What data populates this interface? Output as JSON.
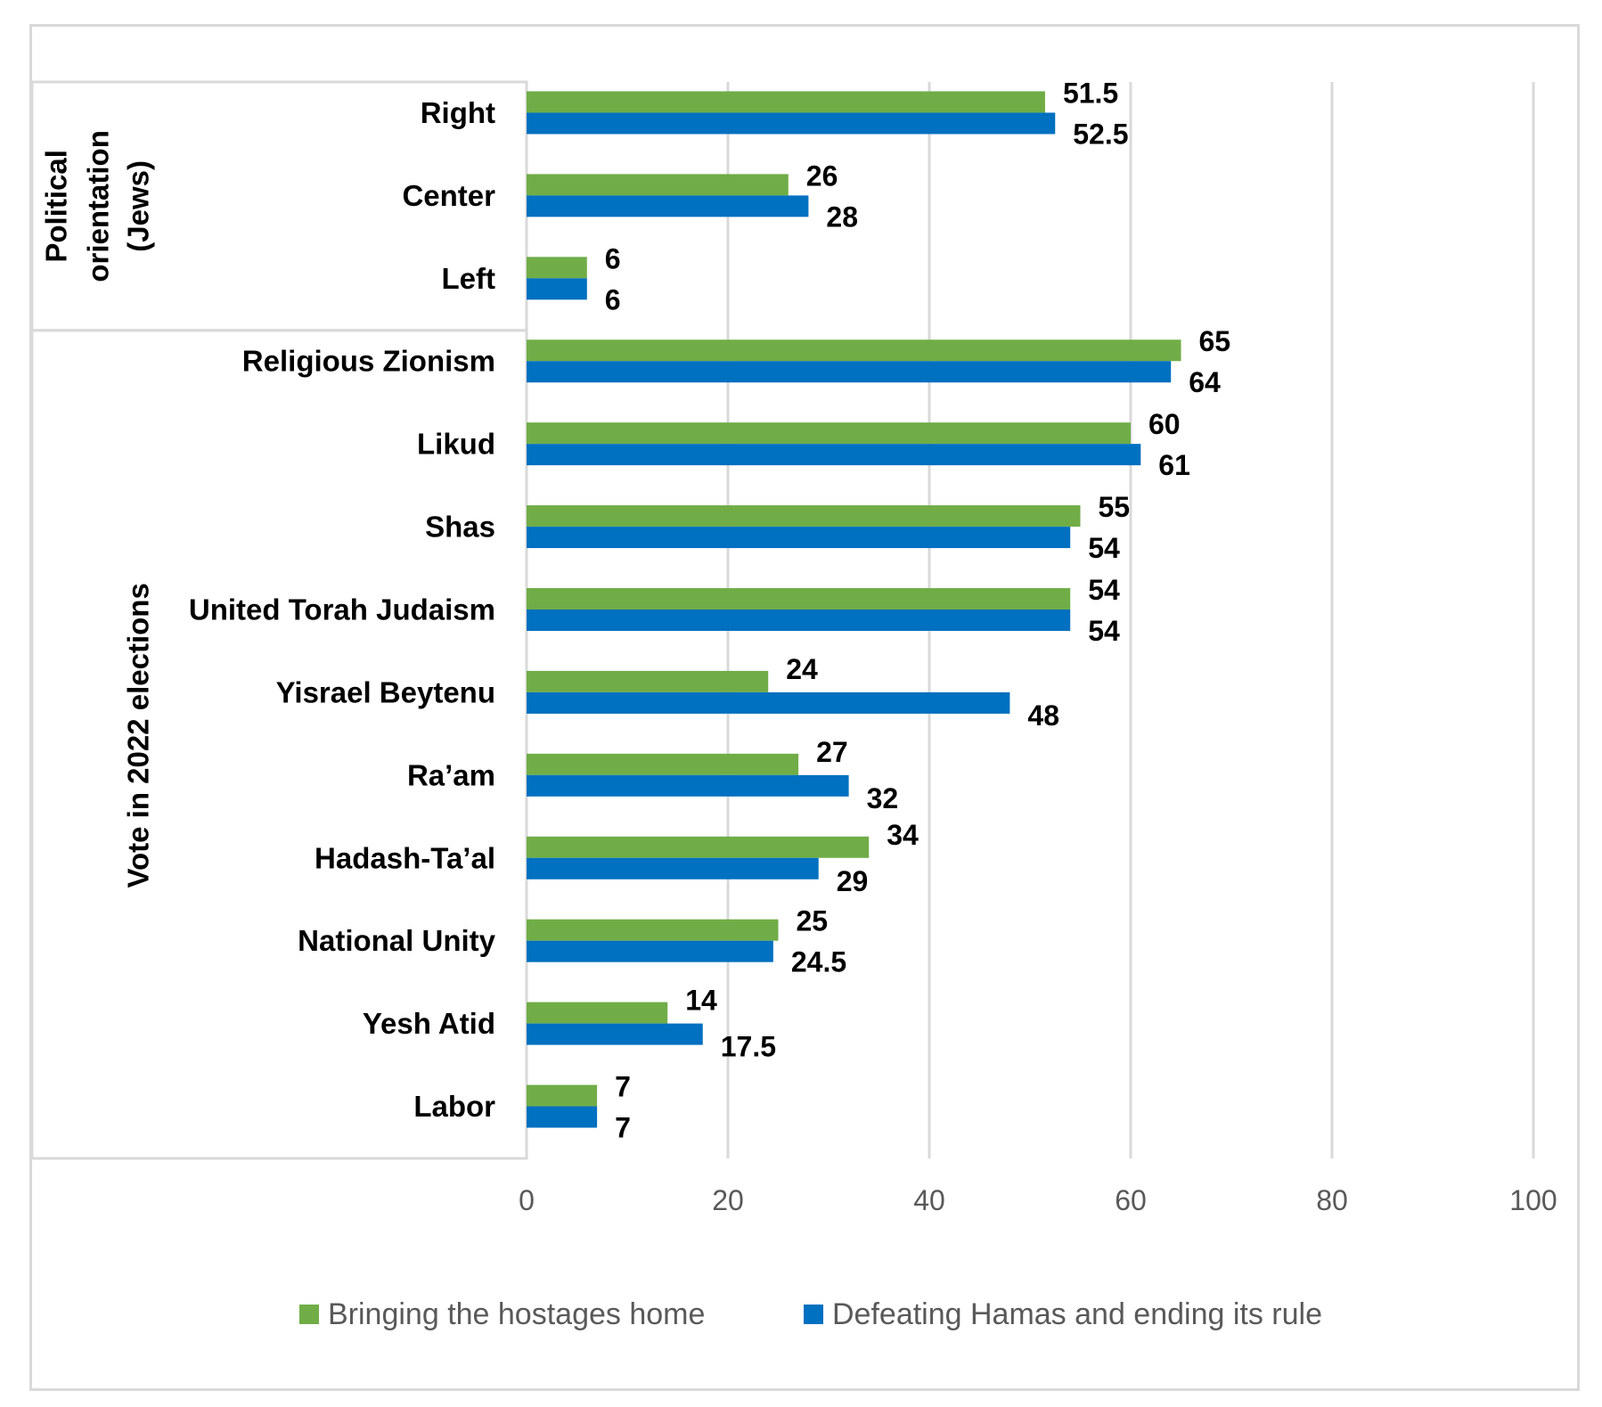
{
  "colors": {
    "series_hostages": "#70ad47",
    "series_hamas": "#0070c0",
    "grid": "#d9d9d9",
    "frame": "#d9d9d9",
    "axis_text": "#595959",
    "label_text": "#000000"
  },
  "chart_data": {
    "type": "bar",
    "orientation": "horizontal",
    "categories": [
      "Right",
      "Center",
      "Left",
      "Religious Zionism",
      "Likud",
      "Shas",
      "United Torah Judaism",
      "Yisrael Beytenu",
      "Ra’am",
      "Hadash-Ta’al",
      "National Unity",
      "Yesh Atid",
      "Labor"
    ],
    "groups": [
      {
        "label_lines": [
          "Political",
          "orientation",
          "(Jews)"
        ],
        "categories": [
          "Right",
          "Center",
          "Left"
        ]
      },
      {
        "label_lines": [
          "Vote in 2022 elections"
        ],
        "categories": [
          "Religious Zionism",
          "Likud",
          "Shas",
          "United Torah Judaism",
          "Yisrael Beytenu",
          "Ra’am",
          "Hadash-Ta’al",
          "National Unity",
          "Yesh Atid",
          "Labor"
        ]
      }
    ],
    "series": [
      {
        "name": "Bringing the hostages home",
        "color": "#70ad47",
        "values": [
          51.5,
          26,
          6,
          65,
          60,
          55,
          54,
          24,
          27,
          34,
          25,
          14,
          7
        ]
      },
      {
        "name": "Defeating Hamas and ending its rule",
        "color": "#0070c0",
        "values": [
          52.5,
          28,
          6,
          64,
          61,
          54,
          54,
          48,
          32,
          29,
          24.5,
          17.5,
          7
        ]
      }
    ],
    "value_labels": [
      [
        "51.5",
        "26",
        "6",
        "65",
        "60",
        "55",
        "54",
        "24",
        "27",
        "34",
        "25",
        "14",
        "7"
      ],
      [
        "52.5",
        "28",
        "6",
        "64",
        "61",
        "54",
        "54",
        "48",
        "32",
        "29",
        "24.5",
        "17.5",
        "7"
      ]
    ],
    "xlim": [
      0,
      100
    ],
    "xticks": [
      0,
      20,
      40,
      60,
      80,
      100
    ],
    "xtick_labels": [
      "0",
      "20",
      "40",
      "60",
      "80",
      "100"
    ],
    "grid": true,
    "legend_position": "bottom",
    "title": "",
    "xlabel": "",
    "ylabel": ""
  }
}
